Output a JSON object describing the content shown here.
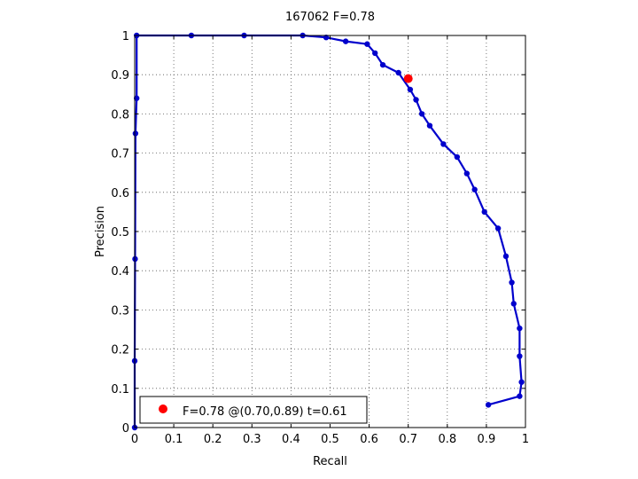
{
  "chart_data": {
    "type": "line",
    "title": "167062 F=0.78",
    "xlabel": "Recall",
    "ylabel": "Precision",
    "xlim": [
      0,
      1
    ],
    "ylim": [
      0,
      1
    ],
    "xticks": [
      0,
      0.1,
      0.2,
      0.3,
      0.4,
      0.5,
      0.6,
      0.7,
      0.8,
      0.9,
      1
    ],
    "yticks": [
      0,
      0.1,
      0.2,
      0.3,
      0.4,
      0.5,
      0.6,
      0.7,
      0.8,
      0.9,
      1
    ],
    "xtick_labels": [
      "0",
      "0.1",
      "0.2",
      "0.3",
      "0.4",
      "0.5",
      "0.6",
      "0.7",
      "0.8",
      "0.9",
      "1"
    ],
    "ytick_labels": [
      "0",
      "0.1",
      "0.2",
      "0.3",
      "0.4",
      "0.5",
      "0.6",
      "0.7",
      "0.8",
      "0.9",
      "1"
    ],
    "grid": true,
    "legend": {
      "position": "bottom-left",
      "entries": [
        "F=0.78 @(0.70,0.89) t=0.61"
      ]
    },
    "series": [
      {
        "color": "#0000cc",
        "marker": "circle",
        "points": [
          [
            0.0,
            0.0
          ],
          [
            0.0,
            0.17
          ],
          [
            0.001,
            0.43
          ],
          [
            0.002,
            0.75
          ],
          [
            0.005,
            0.84
          ],
          [
            0.005,
            1.0
          ],
          [
            0.145,
            1.0
          ],
          [
            0.28,
            1.0
          ],
          [
            0.43,
            1.0
          ],
          [
            0.49,
            0.995
          ],
          [
            0.54,
            0.985
          ],
          [
            0.595,
            0.978
          ],
          [
            0.615,
            0.955
          ],
          [
            0.635,
            0.925
          ],
          [
            0.675,
            0.905
          ],
          [
            0.705,
            0.862
          ],
          [
            0.72,
            0.836
          ],
          [
            0.735,
            0.8
          ],
          [
            0.755,
            0.77
          ],
          [
            0.79,
            0.723
          ],
          [
            0.825,
            0.69
          ],
          [
            0.85,
            0.648
          ],
          [
            0.87,
            0.607
          ],
          [
            0.895,
            0.55
          ],
          [
            0.93,
            0.508
          ],
          [
            0.95,
            0.437
          ],
          [
            0.965,
            0.37
          ],
          [
            0.97,
            0.316
          ],
          [
            0.985,
            0.253
          ],
          [
            0.985,
            0.182
          ],
          [
            0.99,
            0.116
          ],
          [
            0.985,
            0.08
          ],
          [
            0.905,
            0.058
          ]
        ]
      }
    ],
    "highlight": {
      "x": 0.7,
      "y": 0.89,
      "color": "#ff0000"
    },
    "colors": {
      "axes": "#000000",
      "grid": "#555555",
      "line": "#0000cc",
      "best_point": "#ff0000"
    }
  }
}
